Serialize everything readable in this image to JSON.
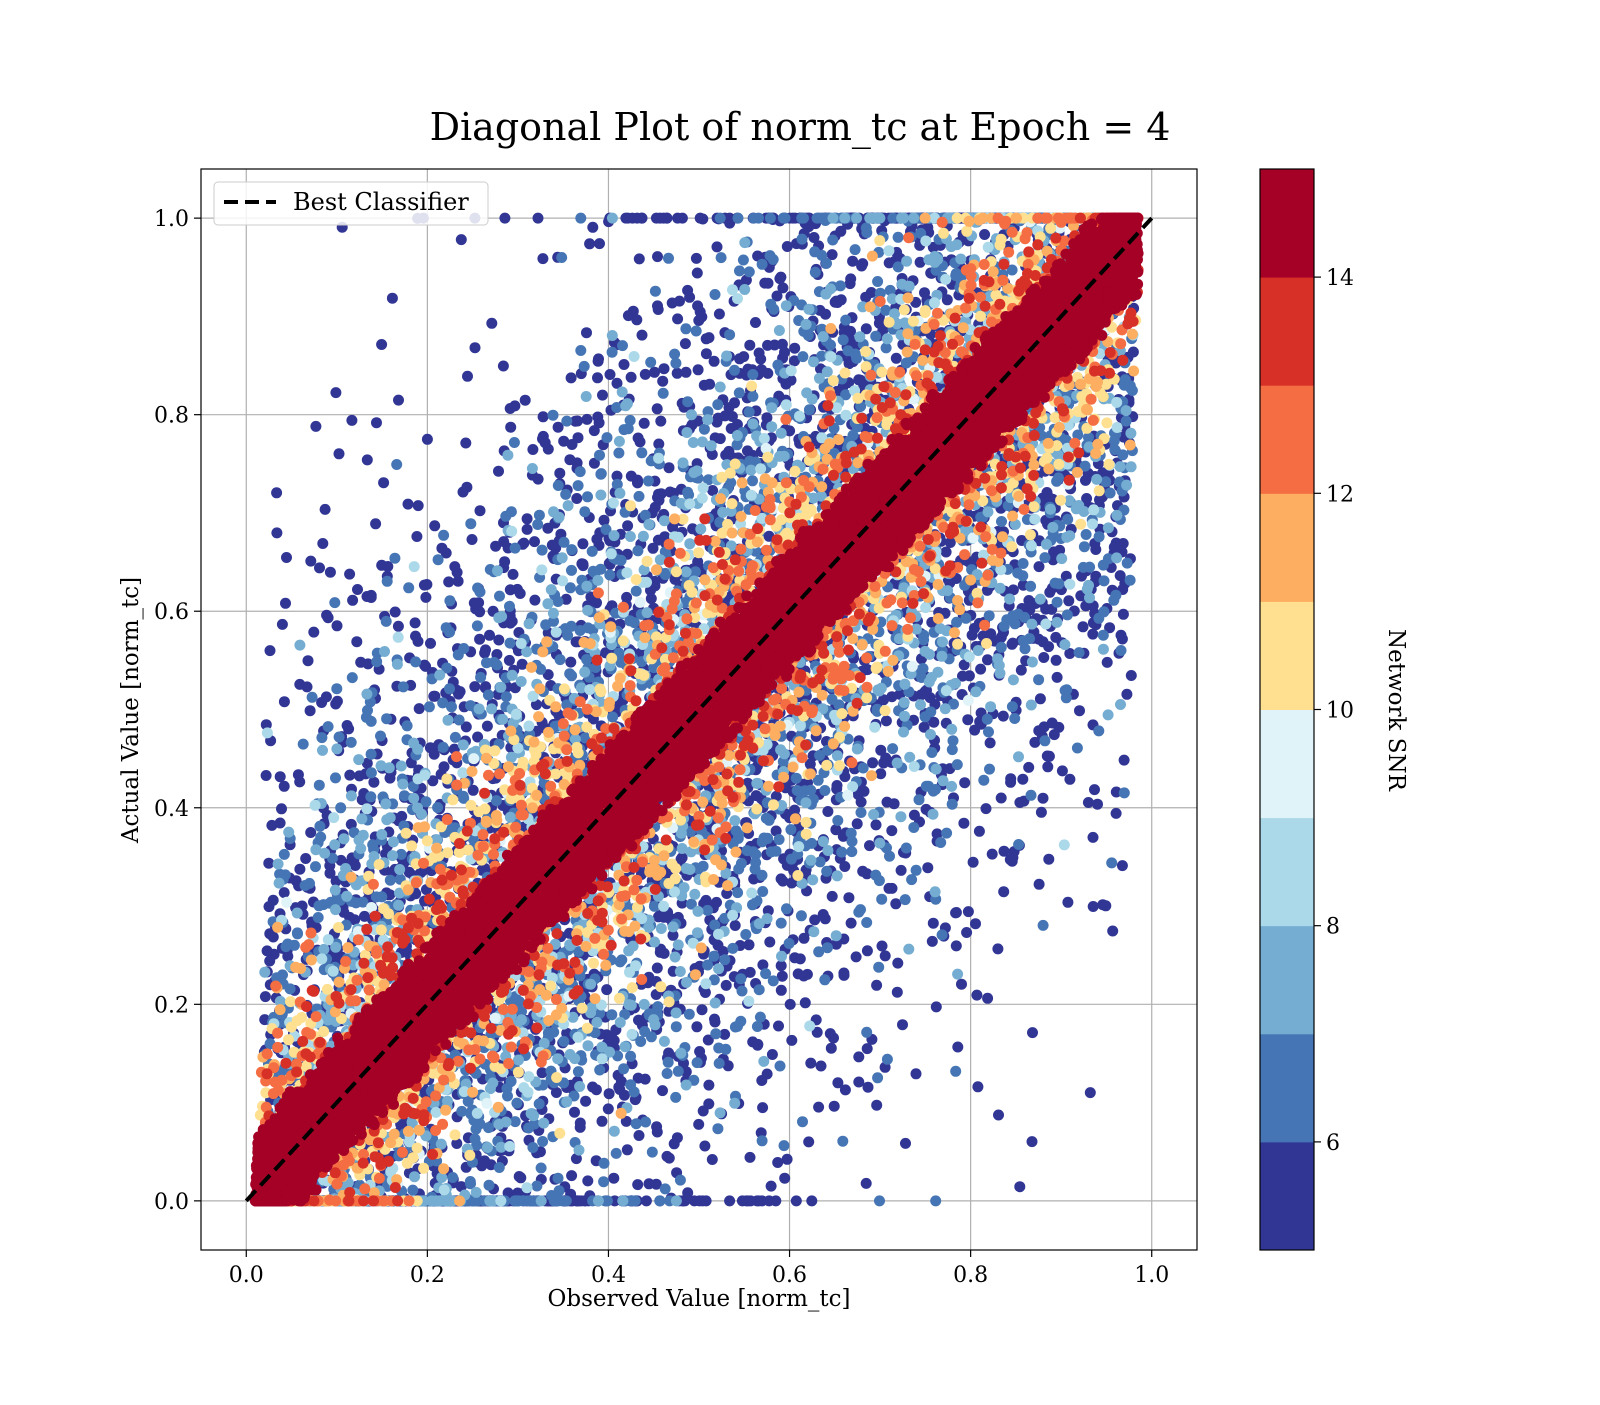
{
  "chart_data": {
    "type": "scatter",
    "title": "Diagonal Plot of norm_tc at Epoch = 4",
    "xlabel": "Observed Value [norm_tc]",
    "ylabel": "Actual Value [norm_tc]",
    "xlim": [
      -0.05,
      1.05
    ],
    "ylim": [
      -0.05,
      1.05
    ],
    "x_ticks": [
      "0.0",
      "0.2",
      "0.4",
      "0.6",
      "0.8",
      "1.0"
    ],
    "y_ticks": [
      "0.0",
      "0.2",
      "0.4",
      "0.6",
      "0.8",
      "1.0"
    ],
    "grid": true,
    "legend": {
      "placement": "upper-left",
      "entries": [
        "Best Classifier"
      ]
    },
    "reference_line": {
      "name": "Best Classifier",
      "style": "dashed",
      "color": "#000000",
      "x": [
        0,
        1
      ],
      "y": [
        0,
        1
      ]
    },
    "colorbar": {
      "label": "Network SNR",
      "range": [
        5,
        15
      ],
      "boundaries": [
        5,
        6,
        7,
        8,
        9,
        10,
        11,
        12,
        13,
        14,
        15
      ],
      "colors": [
        "#313695",
        "#4575b4",
        "#74add1",
        "#abd9e9",
        "#e0f3f8",
        "#fee090",
        "#fdae61",
        "#f46d43",
        "#d73027",
        "#a50026"
      ],
      "ticks": [
        "6",
        "8",
        "10",
        "12",
        "14"
      ]
    },
    "series": [
      {
        "description": "points colored by Network SNR; high-SNR points lie in a dense band along y = x, low-SNR points scattered widely",
        "band_halfwidth_high_snr": 0.06,
        "point_density": "approx. 20000 points"
      }
    ]
  }
}
